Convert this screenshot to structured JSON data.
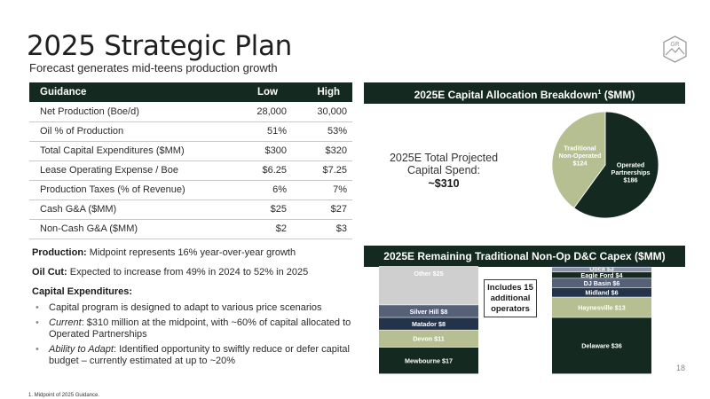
{
  "header": {
    "title": "2025 Strategic Plan",
    "subtitle": "Forecast generates mid-teens production growth",
    "logo_text": "GR"
  },
  "guidance": {
    "columns": [
      "Guidance",
      "Low",
      "High"
    ],
    "rows": [
      {
        "label": "Net Production (Boe/d)",
        "low": "28,000",
        "high": "30,000"
      },
      {
        "label": "Oil % of Production",
        "low": "51%",
        "high": "53%"
      },
      {
        "label": "Total Capital Expenditures ($MM)",
        "low": "$300",
        "high": "$320"
      },
      {
        "label": "Lease Operating Expense / Boe",
        "low": "$6.25",
        "high": "$7.25"
      },
      {
        "label": "Production Taxes (% of Revenue)",
        "low": "6%",
        "high": "7%"
      },
      {
        "label": "Cash G&A ($MM)",
        "low": "$25",
        "high": "$27"
      },
      {
        "label": "Non-Cash G&A ($MM)",
        "low": "$2",
        "high": "$3"
      }
    ]
  },
  "notes": {
    "production_label": "Production:",
    "production_text": " Midpoint represents 16% year-over-year growth",
    "oilcut_label": "Oil Cut:",
    "oilcut_text": " Expected to increase from 49% in 2024 to 52% in 2025",
    "capex_label": "Capital Expenditures:",
    "bullets": [
      {
        "prefix": "",
        "text": "Capital program is designed to adapt to various price scenarios"
      },
      {
        "prefix": "Current",
        "text": ": $310 million at the midpoint, with ~60% of capital allocated to Operated Partnerships"
      },
      {
        "prefix": "Ability to Adapt",
        "text": ": Identified opportunity to swiftly reduce or defer capital budget – currently estimated at up to ~20%"
      }
    ]
  },
  "allocation": {
    "header": "2025E Capital Allocation Breakdown",
    "header_sup": "1",
    "header_suffix": " ($MM)",
    "spend_label": "2025E Total Projected Capital Spend:",
    "spend_value": "~$310"
  },
  "remaining": {
    "header": "2025E Remaining Traditional Non-Op D&C Capex ($MM)",
    "callout": "Includes 15 additional operators"
  },
  "colors": {
    "dark_green": "#14291f",
    "sage": "#b6bf92",
    "light_gray": "#cfcfcf",
    "slate": "#566178",
    "navy": "#22334a"
  },
  "chart_data": [
    {
      "type": "pie",
      "slices": [
        {
          "label_lines": [
            "Operated",
            "Partnerships",
            "$186"
          ],
          "value": 186,
          "color": "#14291f"
        },
        {
          "label_lines": [
            "Traditional",
            "Non-Operated",
            "$124"
          ],
          "value": 124,
          "color": "#b6bf92"
        }
      ]
    },
    {
      "type": "bar",
      "stacked": true,
      "bars": [
        {
          "segments": [
            {
              "name": "Mewbourne",
              "label": "Mewbourne  $17",
              "value": 17,
              "color": "#14291f"
            },
            {
              "name": "Devon",
              "label": "Devon  $11",
              "value": 11,
              "color": "#b6bf92"
            },
            {
              "name": "Matador",
              "label": "Matador  $8",
              "value": 8,
              "color": "#22334a"
            },
            {
              "name": "Silver Hill",
              "label": "Silver Hill  $8",
              "value": 8,
              "color": "#566178"
            },
            {
              "name": "Other",
              "label": "Other  $25",
              "value": 25,
              "color": "#cfcfcf"
            }
          ]
        },
        {
          "segments": [
            {
              "name": "Delaware",
              "label": "Delaware  $36",
              "value": 36,
              "color": "#14291f"
            },
            {
              "name": "Haynesville",
              "label": "Haynesville  $13",
              "value": 13,
              "color": "#b6bf92"
            },
            {
              "name": "Midland",
              "label": "Midland  $6",
              "value": 6,
              "color": "#22334a"
            },
            {
              "name": "DJ Basin",
              "label": "DJ Basin  $6",
              "value": 6,
              "color": "#566178"
            },
            {
              "name": "Eagle Ford",
              "label": "Eagle Ford  $4",
              "value": 4,
              "color": "#14291f"
            },
            {
              "name": "Utica",
              "label": "Utica  $3",
              "value": 3,
              "color": "#8c93a5"
            },
            {
              "name": "Bakken",
              "label": "Bakken  $1",
              "value": 1,
              "color": "#22334a"
            }
          ]
        }
      ]
    }
  ],
  "footer": {
    "footnote": "1.      Midpoint of 2025 Guidance.",
    "page": "18"
  }
}
